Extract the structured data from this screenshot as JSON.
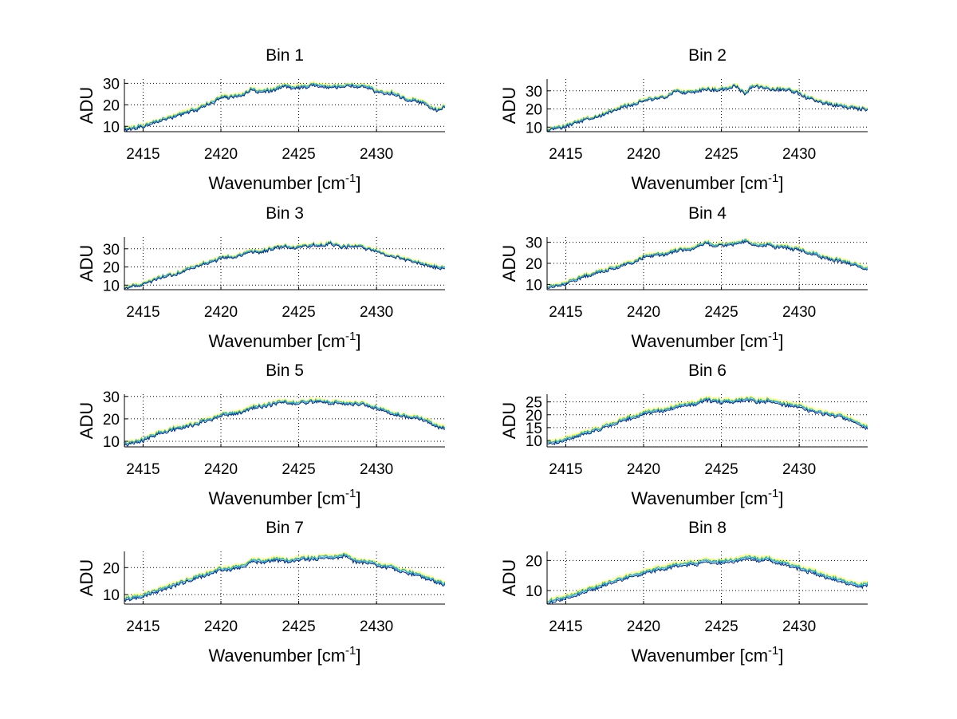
{
  "figure": {
    "background": "#ffffff"
  },
  "shared": {
    "xlabel_main": "Wavenumber [cm",
    "xlabel_sup": "-1",
    "xlabel_close": "]",
    "ylabel": "ADU",
    "xlim": [
      2413.8,
      2434.4
    ],
    "xticks": [
      2415,
      2420,
      2425,
      2430
    ],
    "grid": true,
    "series_colors": [
      "#ffff33",
      "#2ab9a0",
      "#31a6e0",
      "#0b2a88"
    ],
    "series_offsets": [
      0.9,
      0.45,
      0.1,
      -0.35
    ]
  },
  "chart_data": [
    {
      "type": "line",
      "title": "Bin 1",
      "ylim": [
        7.5,
        32
      ],
      "yticks": [
        10,
        20,
        30
      ],
      "x": [
        2413.8,
        2415,
        2416,
        2417,
        2418,
        2418.5,
        2419,
        2419.5,
        2420,
        2420.5,
        2421,
        2421.5,
        2422,
        2422.5,
        2423,
        2423.5,
        2424,
        2424.5,
        2425,
        2425.5,
        2426,
        2426.5,
        2427,
        2427.5,
        2428,
        2428.5,
        2429,
        2429.5,
        2430,
        2430.5,
        2431,
        2431.5,
        2432,
        2432.5,
        2433,
        2433.5,
        2434,
        2434.4
      ],
      "y": [
        8.5,
        10,
        12.5,
        14.5,
        17,
        18,
        20,
        21,
        23.5,
        23.5,
        24,
        25,
        27.5,
        26,
        26.5,
        27,
        29,
        28,
        28,
        28.5,
        29.5,
        28.5,
        28,
        28.5,
        29,
        29,
        28.5,
        28,
        26,
        25.5,
        25.5,
        24,
        22.5,
        22,
        21,
        18.5,
        17.5,
        19
      ]
    },
    {
      "type": "line",
      "title": "Bin 2",
      "ylim": [
        7.5,
        36.5
      ],
      "yticks": [
        10,
        20,
        30
      ],
      "x": [
        2413.8,
        2415,
        2416,
        2417,
        2418,
        2418.5,
        2419,
        2419.5,
        2420,
        2420.5,
        2421,
        2421.5,
        2422,
        2422.5,
        2423,
        2423.5,
        2424,
        2424.5,
        2425,
        2425.5,
        2426,
        2426.5,
        2427,
        2427.5,
        2428,
        2428.5,
        2429,
        2429.5,
        2430,
        2430.5,
        2431,
        2431.5,
        2432,
        2432.5,
        2433,
        2433.5,
        2434,
        2434.4
      ],
      "y": [
        8.5,
        10.5,
        13.5,
        16,
        19,
        21,
        22,
        23,
        25,
        25.5,
        26,
        27,
        30,
        29,
        29.5,
        30,
        31,
        30.5,
        31,
        32,
        32.5,
        28,
        33,
        32,
        31,
        30.5,
        31,
        30,
        29,
        26,
        25,
        23.5,
        22.5,
        22,
        21,
        20.5,
        20,
        20
      ]
    },
    {
      "type": "line",
      "title": "Bin 3",
      "ylim": [
        7.5,
        36.5
      ],
      "yticks": [
        10,
        20,
        30
      ],
      "x": [
        2413.8,
        2415,
        2416,
        2417,
        2418,
        2418.5,
        2419,
        2419.5,
        2420,
        2420.5,
        2421,
        2421.5,
        2422,
        2422.5,
        2423,
        2423.5,
        2424,
        2424.5,
        2425,
        2425.5,
        2426,
        2426.5,
        2427,
        2427.5,
        2428,
        2428.5,
        2429,
        2429.5,
        2430,
        2430.5,
        2431,
        2431.5,
        2432,
        2432.5,
        2433,
        2433.5,
        2434,
        2434.4
      ],
      "y": [
        8.5,
        10.5,
        14,
        16,
        19,
        21,
        22,
        23,
        25,
        25.5,
        26,
        27,
        28.5,
        28,
        29.5,
        30.5,
        31.5,
        31,
        31,
        31.5,
        32.5,
        32,
        33,
        31.5,
        31,
        31.5,
        31,
        30,
        29,
        27,
        26,
        25,
        23.5,
        22.5,
        21.5,
        20.5,
        19.5,
        19
      ]
    },
    {
      "type": "line",
      "title": "Bin 4",
      "ylim": [
        7.5,
        32.5
      ],
      "yticks": [
        10,
        20,
        30
      ],
      "x": [
        2413.8,
        2415,
        2416,
        2417,
        2418,
        2418.5,
        2419,
        2419.5,
        2420,
        2420.5,
        2421,
        2421.5,
        2422,
        2422.5,
        2423,
        2423.5,
        2424,
        2424.5,
        2425,
        2425.5,
        2426,
        2426.5,
        2427,
        2427.5,
        2428,
        2428.5,
        2429,
        2429.5,
        2430,
        2430.5,
        2431,
        2431.5,
        2432,
        2432.5,
        2433,
        2433.5,
        2434,
        2434.4
      ],
      "y": [
        8.5,
        10.5,
        13.5,
        15.5,
        17.5,
        19,
        20,
        21,
        23,
        23.5,
        24,
        24.5,
        26,
        26.5,
        27,
        28,
        30,
        28.5,
        29,
        28.5,
        29.5,
        30.5,
        29,
        28.5,
        29,
        27.5,
        28,
        27,
        26.5,
        25,
        24.5,
        23,
        22,
        21.5,
        20.5,
        19.5,
        18,
        17.5
      ]
    },
    {
      "type": "line",
      "title": "Bin 5",
      "ylim": [
        7.5,
        31
      ],
      "yticks": [
        10,
        20,
        30
      ],
      "x": [
        2413.8,
        2415,
        2416,
        2417,
        2418,
        2418.5,
        2419,
        2419.5,
        2420,
        2420.5,
        2421,
        2421.5,
        2422,
        2422.5,
        2423,
        2423.5,
        2424,
        2424.5,
        2425,
        2425.5,
        2426,
        2426.5,
        2427,
        2427.5,
        2428,
        2428.5,
        2429,
        2429.5,
        2430,
        2430.5,
        2431,
        2431.5,
        2432,
        2432.5,
        2433,
        2433.5,
        2434,
        2434.4
      ],
      "y": [
        8.5,
        10.5,
        13.5,
        15.5,
        17,
        18,
        19.5,
        20,
        22,
        22,
        22.5,
        23.5,
        25,
        25.5,
        26,
        27,
        28,
        27,
        27,
        27.5,
        28,
        27.5,
        27,
        27.5,
        27,
        26.5,
        27,
        25.5,
        25,
        23.5,
        22.5,
        21.5,
        21,
        20.5,
        19.5,
        18,
        16.5,
        16
      ]
    },
    {
      "type": "line",
      "title": "Bin 6",
      "ylim": [
        7.5,
        28
      ],
      "yticks": [
        10,
        15,
        20,
        25
      ],
      "x": [
        2413.8,
        2415,
        2416,
        2417,
        2418,
        2418.5,
        2419,
        2419.5,
        2420,
        2420.5,
        2421,
        2421.5,
        2422,
        2422.5,
        2423,
        2423.5,
        2424,
        2424.5,
        2425,
        2425.5,
        2426,
        2426.5,
        2427,
        2427.5,
        2428,
        2428.5,
        2429,
        2429.5,
        2430,
        2430.5,
        2431,
        2431.5,
        2432,
        2432.5,
        2433,
        2433.5,
        2434,
        2434.4
      ],
      "y": [
        8.5,
        10,
        12.5,
        14,
        16.5,
        17.5,
        18.5,
        19.5,
        20.5,
        21,
        21.5,
        22,
        23,
        23.5,
        24,
        24.5,
        26,
        25.5,
        25,
        25,
        25.5,
        26,
        25.5,
        25,
        25.5,
        24.5,
        24,
        23.5,
        23,
        22,
        21,
        20.5,
        20,
        19.5,
        18.5,
        17.5,
        16,
        15
      ]
    },
    {
      "type": "line",
      "title": "Bin 7",
      "ylim": [
        6.5,
        26
      ],
      "yticks": [
        10,
        20
      ],
      "x": [
        2413.8,
        2415,
        2416,
        2417,
        2418,
        2418.5,
        2419,
        2419.5,
        2420,
        2420.5,
        2421,
        2421.5,
        2422,
        2422.5,
        2423,
        2423.5,
        2424,
        2424.5,
        2425,
        2425.5,
        2426,
        2426.5,
        2427,
        2427.5,
        2428,
        2428.5,
        2429,
        2429.5,
        2430,
        2430.5,
        2431,
        2431.5,
        2432,
        2432.5,
        2433,
        2433.5,
        2434,
        2434.4
      ],
      "y": [
        8,
        9.5,
        11.5,
        13.5,
        15.5,
        16.5,
        17.5,
        18.5,
        19.5,
        19.5,
        20,
        20.5,
        23,
        22,
        22.5,
        23,
        22.5,
        22.5,
        23,
        23.5,
        23,
        24,
        23.5,
        24,
        24.5,
        22.5,
        22,
        22,
        21,
        20.5,
        20,
        19,
        18,
        17.5,
        16.5,
        15.5,
        14.5,
        14
      ]
    },
    {
      "type": "line",
      "title": "Bin 8",
      "ylim": [
        5.5,
        23
      ],
      "yticks": [
        10,
        20
      ],
      "x": [
        2413.8,
        2415,
        2416,
        2417,
        2418,
        2418.5,
        2419,
        2419.5,
        2420,
        2420.5,
        2421,
        2421.5,
        2422,
        2422.5,
        2423,
        2423.5,
        2424,
        2424.5,
        2425,
        2425.5,
        2426,
        2426.5,
        2427,
        2427.5,
        2428,
        2428.5,
        2429,
        2429.5,
        2430,
        2430.5,
        2431,
        2431.5,
        2432,
        2432.5,
        2433,
        2433.5,
        2434,
        2434.4
      ],
      "y": [
        6,
        7.5,
        9.5,
        11,
        13,
        13.5,
        14.5,
        15,
        16,
        16.5,
        17,
        17.5,
        18.5,
        18.5,
        19,
        19,
        20,
        19.5,
        19.5,
        20,
        20,
        21,
        20.5,
        20,
        20.5,
        19.5,
        19,
        18,
        17.5,
        16.5,
        16,
        15,
        14,
        13.5,
        12.5,
        12,
        11.5,
        12
      ]
    }
  ]
}
